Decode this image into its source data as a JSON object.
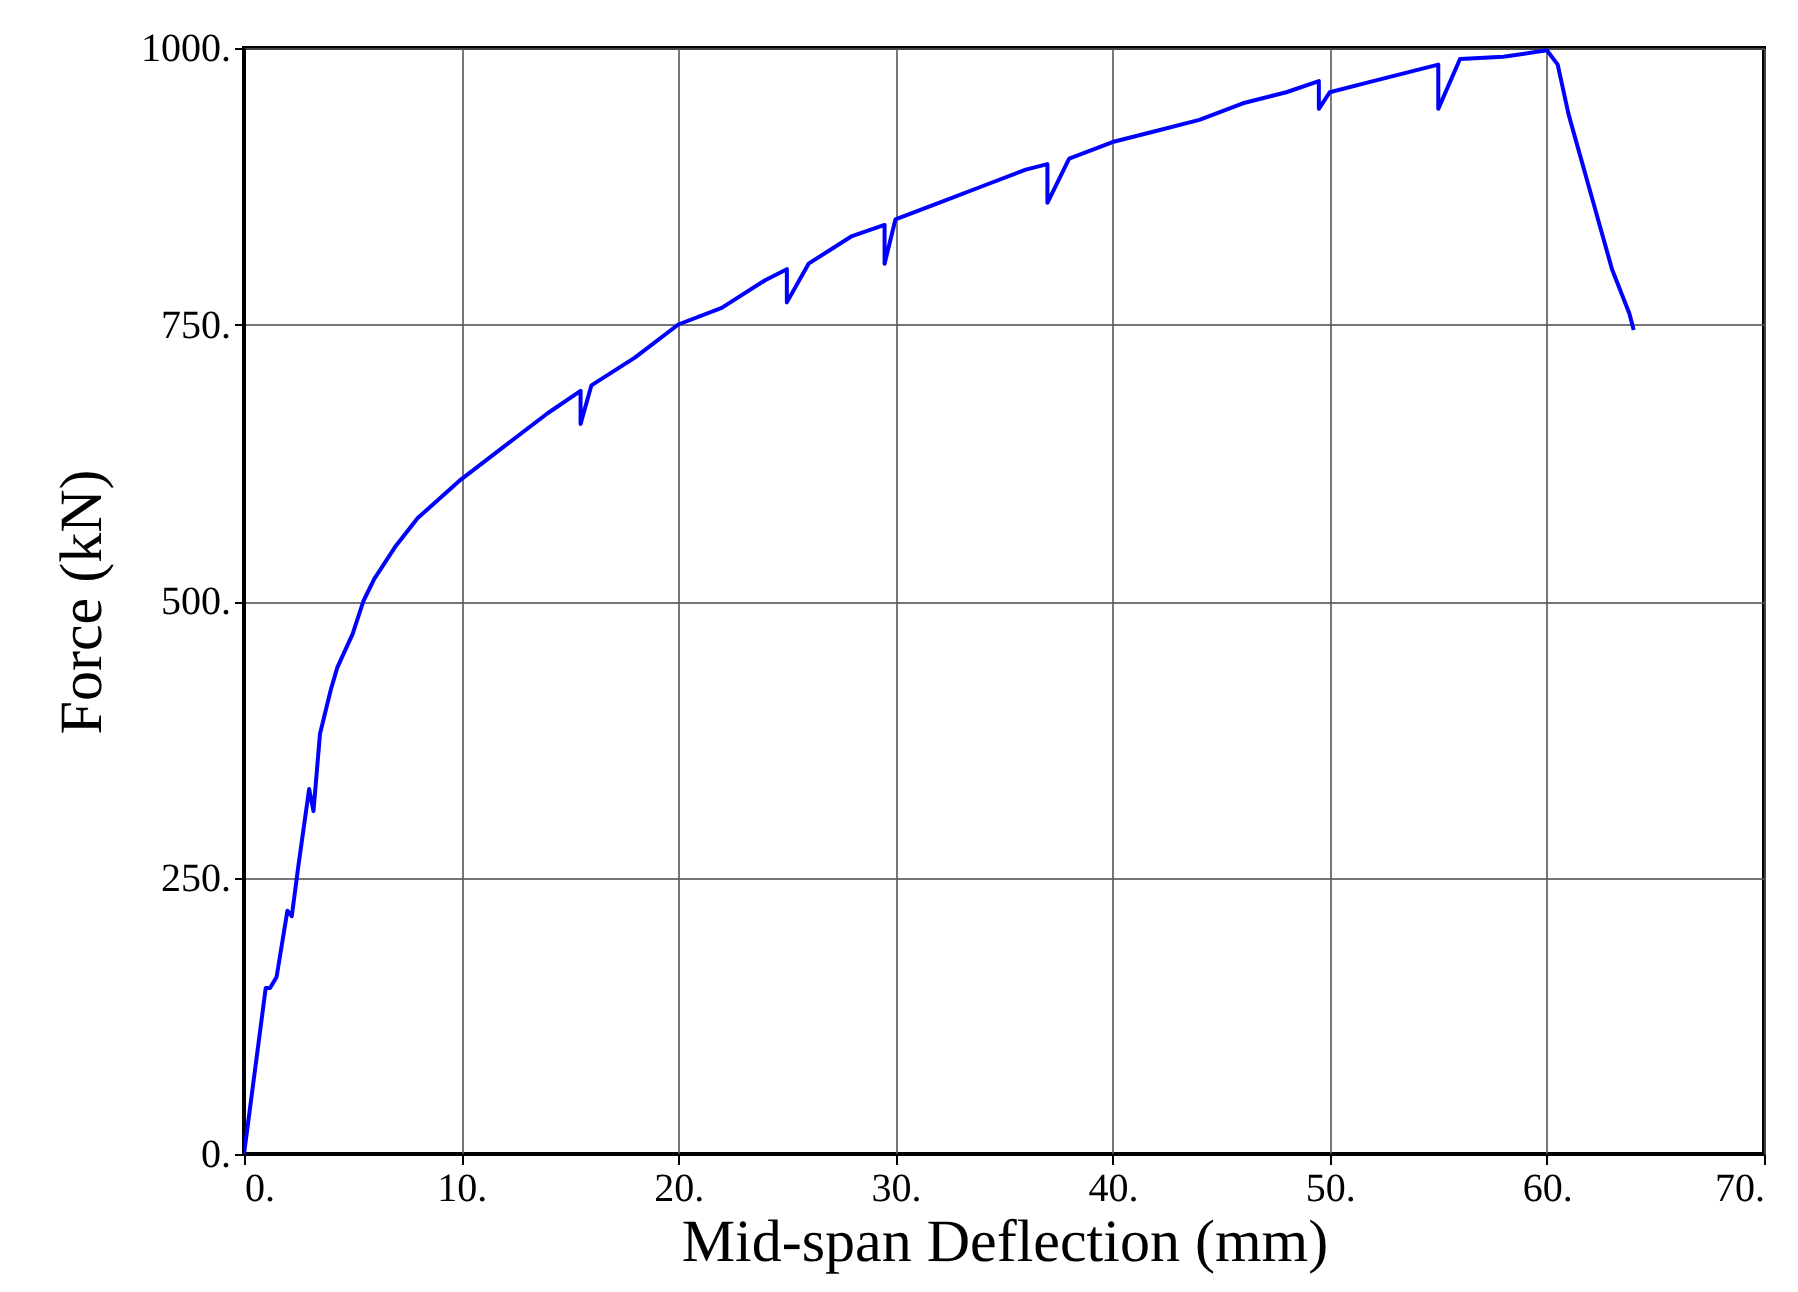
{
  "chart_data": {
    "type": "line",
    "xlabel": "Mid-span Deflection (mm)",
    "ylabel": "Force (kN)",
    "x": [
      0,
      1,
      1.2,
      1.5,
      2,
      2.2,
      2.5,
      3,
      3.2,
      3.5,
      4,
      4.3,
      5,
      5.5,
      6,
      7,
      8,
      10,
      12,
      14,
      15.5,
      15.5,
      16,
      18,
      20,
      22,
      24,
      25,
      25,
      26,
      28,
      29.5,
      29.5,
      30,
      32,
      34,
      36,
      37,
      37,
      38,
      40,
      42,
      44,
      46,
      48,
      49.5,
      49.5,
      50,
      52,
      54,
      55,
      55,
      56,
      58,
      60,
      60.5,
      61,
      62,
      63,
      63.8,
      64
    ],
    "series": [
      {
        "color": "#0000ff",
        "values": [
          0,
          150,
          150,
          160,
          220,
          215,
          260,
          330,
          310,
          380,
          420,
          440,
          470,
          500,
          520,
          550,
          575,
          610,
          640,
          670,
          690,
          660,
          695,
          720,
          750,
          765,
          790,
          800,
          770,
          805,
          830,
          840,
          805,
          845,
          860,
          875,
          890,
          895,
          860,
          900,
          915,
          925,
          935,
          950,
          960,
          970,
          945,
          960,
          970,
          980,
          985,
          945,
          990,
          992,
          998,
          985,
          940,
          870,
          800,
          760,
          745
        ]
      }
    ],
    "xlim": [
      0,
      70
    ],
    "ylim": [
      0,
      1000
    ],
    "xticks": [
      {
        "value": 0,
        "label": "0."
      },
      {
        "value": 10,
        "label": "10."
      },
      {
        "value": 20,
        "label": "20."
      },
      {
        "value": 30,
        "label": "30."
      },
      {
        "value": 40,
        "label": "40."
      },
      {
        "value": 50,
        "label": "50."
      },
      {
        "value": 60,
        "label": "60."
      },
      {
        "value": 70,
        "label": "70."
      }
    ],
    "yticks": [
      {
        "value": 0,
        "label": "0."
      },
      {
        "value": 250,
        "label": "250."
      },
      {
        "value": 500,
        "label": "500."
      },
      {
        "value": 750,
        "label": "750."
      },
      {
        "value": 1000,
        "label": "1000."
      }
    ],
    "grid": true,
    "marker": "none",
    "line_style": "solid"
  }
}
